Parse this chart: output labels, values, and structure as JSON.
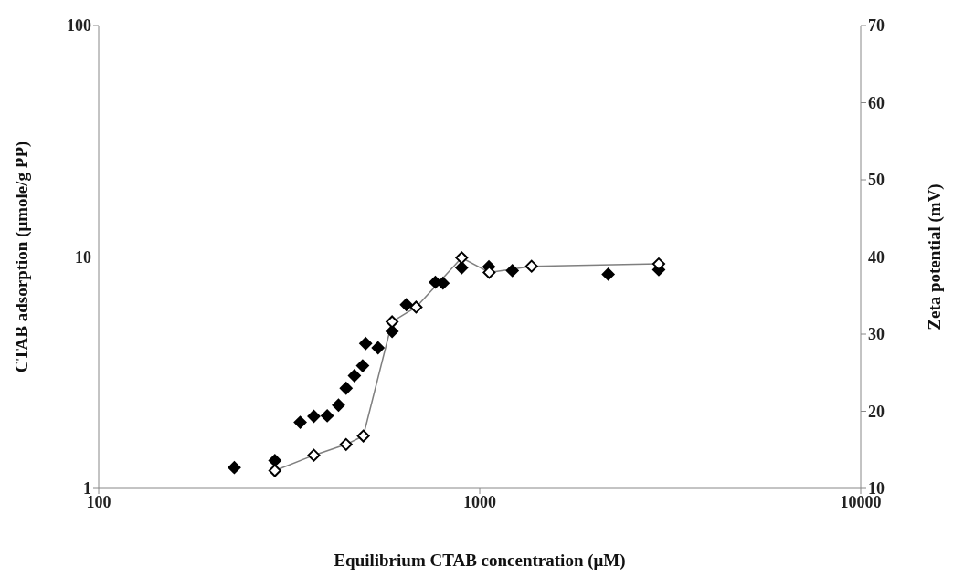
{
  "chart_data": {
    "type": "scatter",
    "xlabel": "Equilibrium CTAB concentration (μM)",
    "ylabel": "CTAB adsorption (μmole/g PP)",
    "y2label": "Zeta potential (mV)",
    "log": "xy",
    "xlim": [
      100,
      10000
    ],
    "xticks": [
      100,
      1000,
      10000
    ],
    "ylim": [
      1,
      100
    ],
    "yticks": [
      1,
      10,
      100
    ],
    "y2lim": [
      10,
      70
    ],
    "y2ticks": [
      10,
      20,
      30,
      40,
      50,
      60,
      70
    ],
    "grid": false,
    "marker": "diamond",
    "series": [
      {
        "color": "#000000",
        "x": [
          227,
          290,
          338,
          367,
          398,
          426,
          446,
          469,
          493,
          502,
          541,
          589,
          642,
          765,
          801,
          897,
          1057,
          1218,
          2174,
          2951
        ],
        "values": [
          1.23,
          1.32,
          1.93,
          2.05,
          2.06,
          2.29,
          2.71,
          3.07,
          3.39,
          4.23,
          4.05,
          4.77,
          6.22,
          7.78,
          7.71,
          8.99,
          9.07,
          8.73,
          8.42,
          8.81
        ]
      },
      {
        "type": "line",
        "axis": "y2",
        "color": "#000000",
        "x": [
          290,
          367,
          446,
          495,
          589,
          681,
          897,
          1059,
          1368,
          2951
        ],
        "values": [
          12.3,
          14.3,
          15.7,
          16.8,
          31.6,
          33.5,
          39.9,
          38.0,
          38.8,
          39.1
        ]
      }
    ]
  }
}
